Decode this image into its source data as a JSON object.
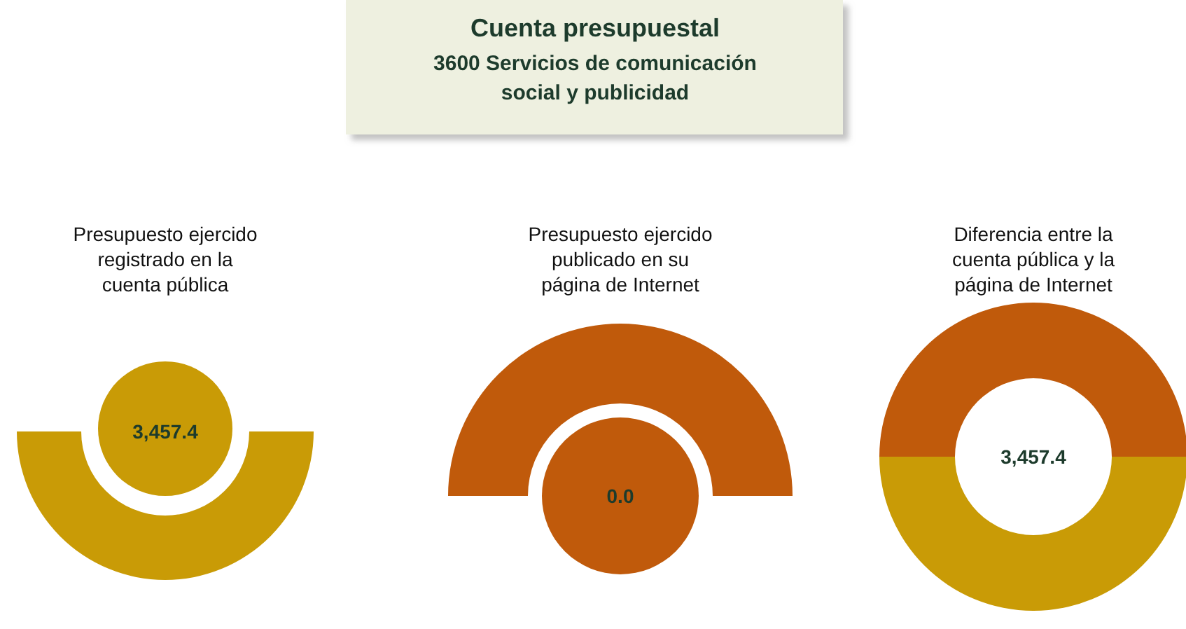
{
  "chart_data": {
    "type": "other",
    "title": "Cuenta presupuestal",
    "subtitle": "3600 Servicios de comunicación social y publicidad",
    "categories": [
      "Presupuesto ejercido registrado en la cuenta pública",
      "Presupuesto ejercido publicado en su página de Internet",
      "Diferencia entre la cuenta pública y la página de Internet"
    ],
    "values": [
      3457.4,
      0.0,
      3457.4
    ],
    "value_labels": [
      "3,457.4",
      "0.0",
      "3,457.4"
    ]
  }
}
